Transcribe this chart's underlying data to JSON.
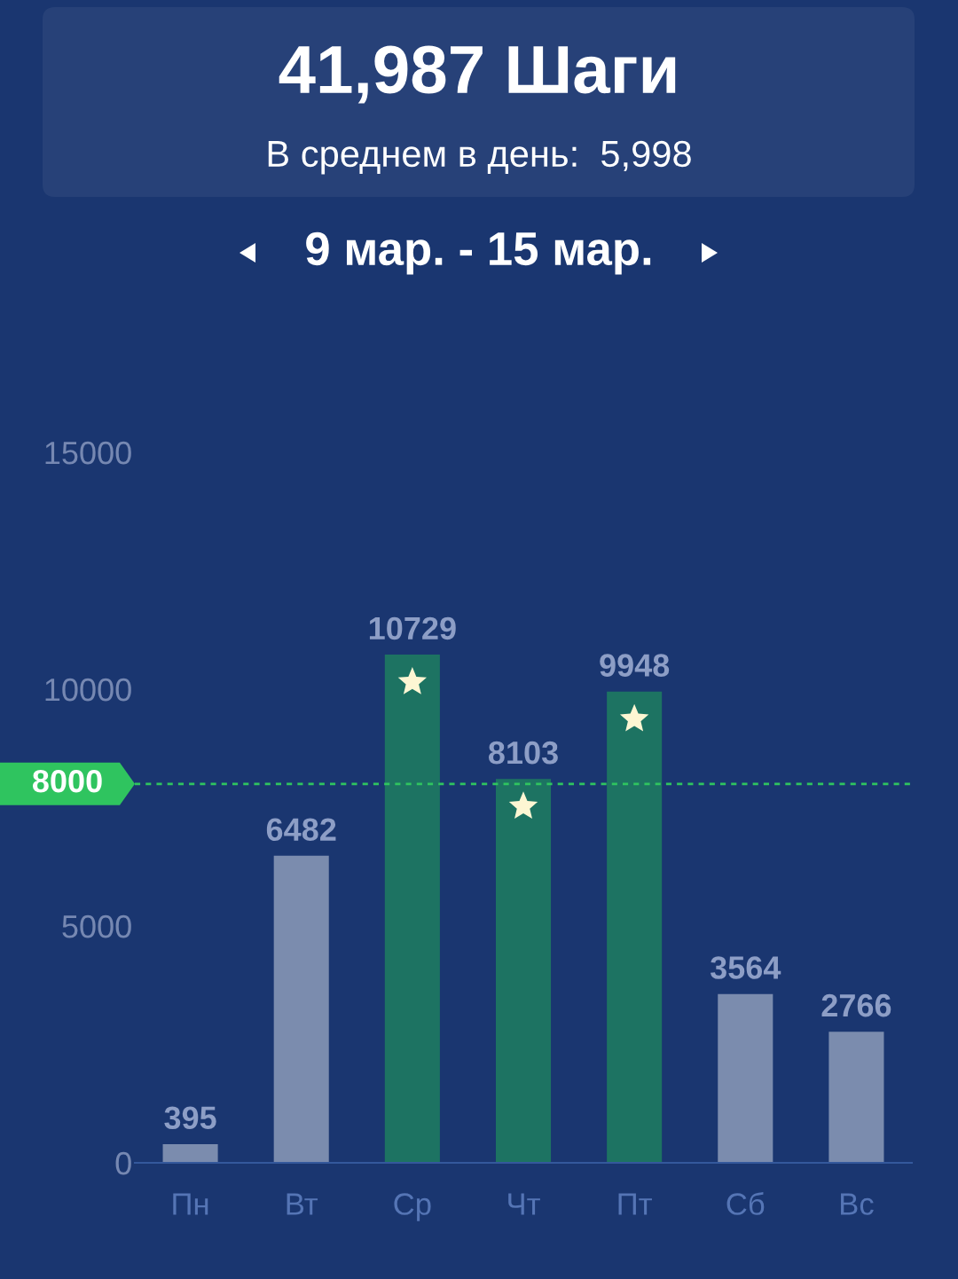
{
  "chart_data": {
    "type": "bar",
    "title": "41,987 Шаги",
    "subtitle": "В среднем в день:  5,998",
    "annotations": [
      "9 мар. - 15 мар."
    ],
    "categories": [
      "Пн",
      "Вт",
      "Ср",
      "Чт",
      "Пт",
      "Сб",
      "Вс"
    ],
    "values": [
      395,
      6482,
      10729,
      8103,
      9948,
      3564,
      2766
    ],
    "colors": [
      "#7b8cae",
      "#7b8cae",
      "#1d7362",
      "#1d7362",
      "#1d7362",
      "#7b8cae",
      "#7b8cae"
    ],
    "data_labels": true,
    "ylim": [
      0,
      15000
    ],
    "yticks": [
      0,
      5000,
      10000,
      15000
    ],
    "ref_lines": [
      {
        "axis": "y",
        "value": 8000,
        "label": "8000",
        "color": "#2fc45f",
        "line_style": "dotted"
      }
    ]
  }
}
